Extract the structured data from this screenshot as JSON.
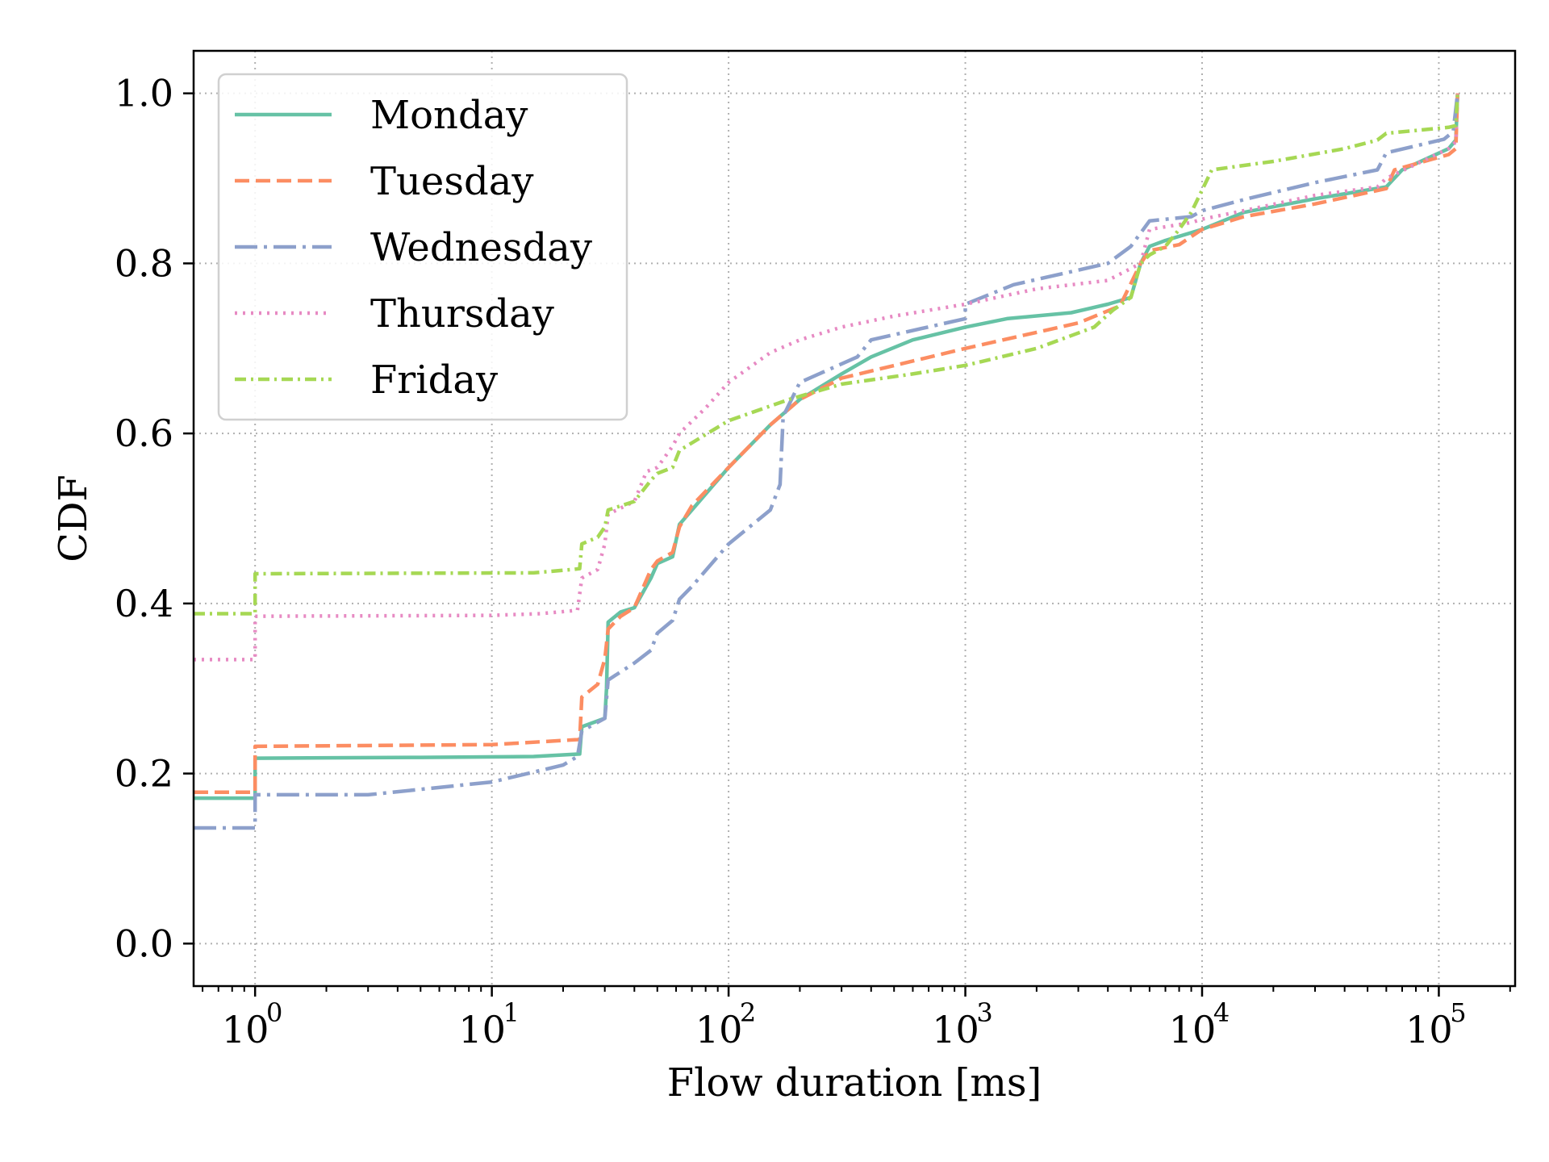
{
  "chart_data": {
    "type": "line",
    "title": "",
    "xlabel": "Flow duration [ms]",
    "ylabel": "CDF",
    "xscale": "log",
    "xlim": [
      0.55,
      210000
    ],
    "ylim": [
      -0.05,
      1.05
    ],
    "x_ticks": [
      1,
      10,
      100,
      1000,
      10000,
      100000
    ],
    "x_tick_labels": [
      {
        "base": "10",
        "exp": "0"
      },
      {
        "base": "10",
        "exp": "1"
      },
      {
        "base": "10",
        "exp": "2"
      },
      {
        "base": "10",
        "exp": "3"
      },
      {
        "base": "10",
        "exp": "4"
      },
      {
        "base": "10",
        "exp": "5"
      }
    ],
    "y_ticks": [
      0.0,
      0.2,
      0.4,
      0.6,
      0.8,
      1.0
    ],
    "y_tick_labels": [
      "0.0",
      "0.2",
      "0.4",
      "0.6",
      "0.8",
      "1.0"
    ],
    "grid": true,
    "legend_position": "top-left",
    "series": [
      {
        "name": "Monday",
        "color": "#66c2a5",
        "dash": "solid",
        "x": [
          0.55,
          1,
          1,
          5,
          15,
          23.5,
          24,
          30,
          30.5,
          31,
          35,
          40,
          47,
          50,
          58,
          62,
          70,
          100,
          150,
          200,
          300,
          400,
          600,
          1000,
          1500,
          2800,
          4000,
          5000,
          5500,
          6000,
          7000,
          10000,
          15000,
          30000,
          60000,
          70000,
          110000,
          118000,
          120000
        ],
        "y": [
          0.171,
          0.171,
          0.218,
          0.219,
          0.22,
          0.223,
          0.255,
          0.265,
          0.3,
          0.378,
          0.39,
          0.395,
          0.43,
          0.447,
          0.455,
          0.493,
          0.51,
          0.56,
          0.61,
          0.64,
          0.67,
          0.69,
          0.71,
          0.725,
          0.735,
          0.742,
          0.752,
          0.76,
          0.8,
          0.82,
          0.827,
          0.84,
          0.86,
          0.876,
          0.89,
          0.91,
          0.935,
          0.945,
          1.0
        ]
      },
      {
        "name": "Tuesday",
        "color": "#fc8d62",
        "dash": "dashed",
        "x": [
          0.55,
          1,
          1,
          10,
          23.5,
          24,
          28,
          30,
          31,
          35,
          40,
          47,
          50,
          58,
          62,
          70,
          100,
          150,
          200,
          300,
          1000,
          3000,
          4500,
          5500,
          6000,
          8000,
          10000,
          15000,
          30000,
          60000,
          65000,
          110000,
          118000,
          120000
        ],
        "y": [
          0.178,
          0.178,
          0.232,
          0.234,
          0.24,
          0.29,
          0.305,
          0.335,
          0.37,
          0.385,
          0.395,
          0.44,
          0.45,
          0.46,
          0.49,
          0.515,
          0.56,
          0.61,
          0.64,
          0.665,
          0.7,
          0.73,
          0.75,
          0.8,
          0.815,
          0.822,
          0.84,
          0.855,
          0.87,
          0.888,
          0.91,
          0.928,
          0.935,
          1.0
        ]
      },
      {
        "name": "Wednesday",
        "color": "#8da0cb",
        "dash": "dashdot",
        "x": [
          0.55,
          1,
          1,
          3,
          10,
          20,
          23,
          24,
          30,
          31,
          40,
          47,
          50,
          58,
          62,
          70,
          100,
          150,
          165,
          170,
          200,
          350,
          400,
          1000,
          1000,
          1600,
          4000,
          5000,
          6000,
          9000,
          10000,
          15000,
          30000,
          55000,
          60000,
          105000,
          115000,
          120000
        ],
        "y": [
          0.136,
          0.136,
          0.175,
          0.175,
          0.19,
          0.21,
          0.22,
          0.25,
          0.265,
          0.31,
          0.33,
          0.345,
          0.365,
          0.38,
          0.405,
          0.42,
          0.47,
          0.51,
          0.54,
          0.62,
          0.66,
          0.69,
          0.71,
          0.735,
          0.752,
          0.775,
          0.8,
          0.82,
          0.85,
          0.855,
          0.862,
          0.875,
          0.895,
          0.91,
          0.93,
          0.946,
          0.955,
          1.0
        ]
      },
      {
        "name": "Thursday",
        "color": "#e78ac3",
        "dash": "dotted",
        "x": [
          0.55,
          1,
          1,
          10,
          16,
          23,
          24,
          28,
          30,
          31,
          40,
          45,
          50,
          58,
          62,
          80,
          100,
          150,
          200,
          300,
          500,
          1000,
          2000,
          4000,
          5500,
          6000,
          9000,
          10000,
          15000,
          30000,
          55000,
          60000,
          110000,
          118000,
          120000
        ],
        "y": [
          0.334,
          0.334,
          0.385,
          0.386,
          0.388,
          0.392,
          0.43,
          0.44,
          0.47,
          0.505,
          0.52,
          0.555,
          0.56,
          0.585,
          0.6,
          0.63,
          0.66,
          0.695,
          0.71,
          0.725,
          0.738,
          0.752,
          0.77,
          0.78,
          0.8,
          0.84,
          0.848,
          0.852,
          0.862,
          0.88,
          0.89,
          0.9,
          0.935,
          0.943,
          1.0
        ]
      },
      {
        "name": "Friday",
        "color": "#a6d854",
        "dash": "dashdot-dense",
        "x": [
          0.55,
          1,
          1,
          15,
          22,
          23.5,
          24,
          28,
          30,
          31,
          40,
          47,
          50,
          58,
          62,
          100,
          180,
          300,
          600,
          1000,
          2000,
          3500,
          4200,
          5000,
          5500,
          6000,
          7000,
          8000,
          9000,
          11000,
          20000,
          40000,
          55000,
          60000,
          110000,
          118000,
          120000
        ],
        "y": [
          0.388,
          0.388,
          0.435,
          0.436,
          0.44,
          0.441,
          0.47,
          0.478,
          0.49,
          0.51,
          0.52,
          0.545,
          0.553,
          0.56,
          0.58,
          0.615,
          0.64,
          0.658,
          0.67,
          0.68,
          0.7,
          0.725,
          0.745,
          0.76,
          0.8,
          0.81,
          0.82,
          0.84,
          0.86,
          0.91,
          0.92,
          0.935,
          0.945,
          0.953,
          0.96,
          0.962,
          1.0
        ]
      }
    ]
  }
}
